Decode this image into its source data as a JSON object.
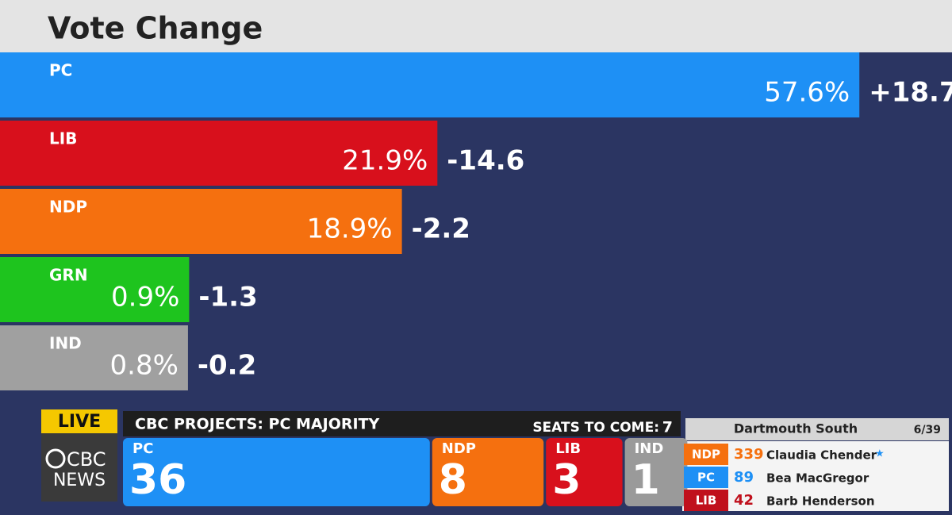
{
  "chart_data": {
    "type": "hbar",
    "title": "Vote Change",
    "categories": [
      "PC",
      "LIB",
      "NDP",
      "GRN",
      "IND"
    ],
    "values": [
      57.6,
      21.9,
      18.9,
      0.9,
      0.8
    ],
    "value_labels": [
      "57.6%",
      "21.9%",
      "18.9%",
      "0.9%",
      "0.8%"
    ],
    "colors": [
      "#1e90f5",
      "#d8101c",
      "#f5700f",
      "#1ec41e",
      "#a0a0a0"
    ],
    "change": {
      "values": [
        18.7,
        -14.6,
        -2.2,
        -1.3,
        -0.2
      ],
      "value_labels": [
        "+18.7",
        "-14.6",
        "-2.2",
        "-1.3",
        "-0.2"
      ]
    }
  },
  "ticker": {
    "live": "LIVE",
    "logo": [
      "CBC",
      "NEWS"
    ],
    "headline": "CBC PROJECTS: PC MAJORITY",
    "seats_to_come_label": "SEATS TO COME:",
    "seats_to_come": 7,
    "seats": [
      {
        "party": "PC",
        "seats": 36,
        "color": "#1e90f5"
      },
      {
        "party": "NDP",
        "seats": 8,
        "color": "#f5700f"
      },
      {
        "party": "LIB",
        "seats": 3,
        "color": "#d8101c"
      },
      {
        "party": "IND",
        "seats": 1,
        "color": "#9a9a9a"
      }
    ],
    "riding": {
      "name": "Dartmouth South",
      "count": "6/39",
      "rows": [
        {
          "party": "NDP",
          "votes": 339,
          "candidate": "Claudia Chender",
          "color": "#f5700f"
        },
        {
          "party": "PC",
          "votes": 89,
          "candidate": "Bea MacGregor",
          "color": "#1e90f5"
        },
        {
          "party": "LIB",
          "votes": 42,
          "candidate": "Barb Henderson",
          "color": "#c0101c"
        }
      ]
    }
  }
}
